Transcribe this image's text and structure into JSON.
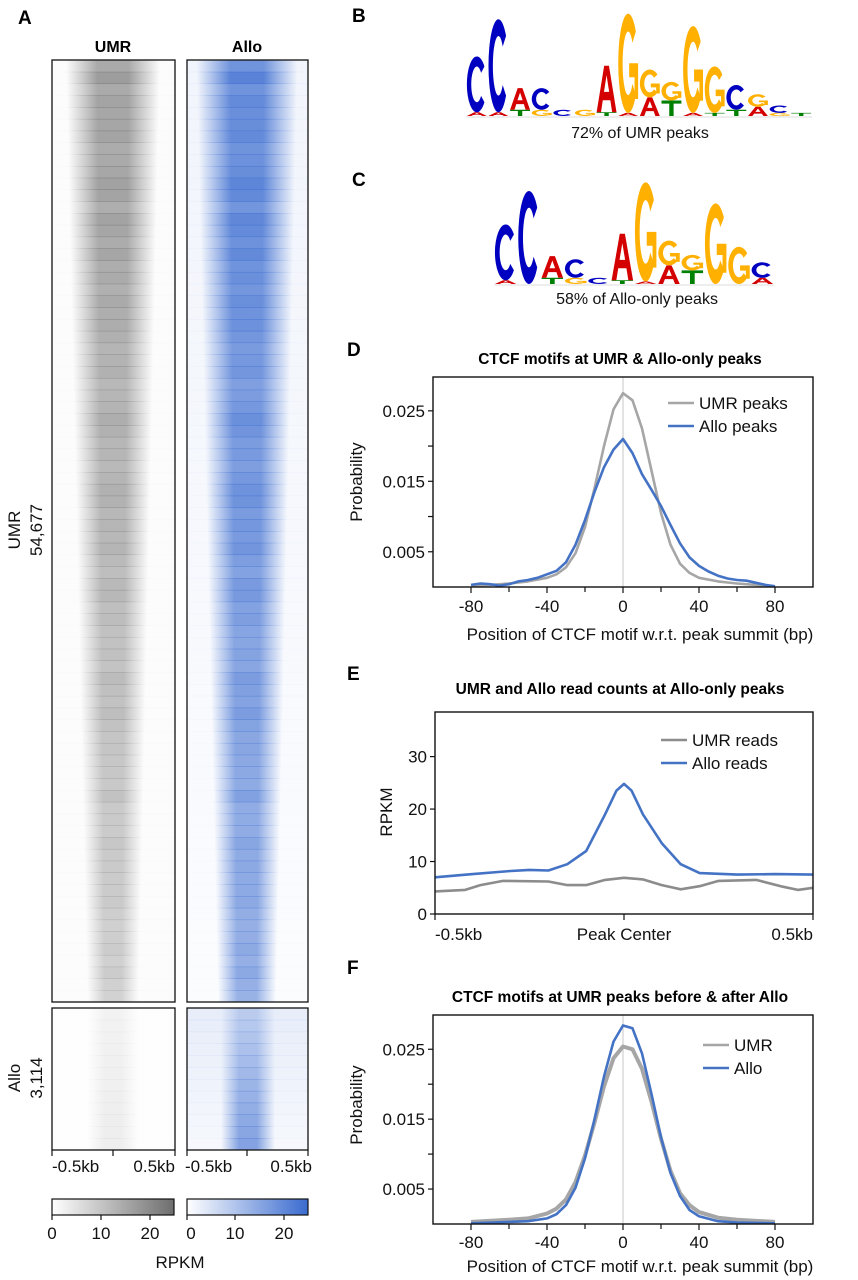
{
  "panel_labels": {
    "A": "A",
    "B": "B",
    "C": "C",
    "D": "D",
    "E": "E",
    "F": "F"
  },
  "colors": {
    "umr": "#a6a6a6",
    "allo": "#4472c4",
    "umr_dark": "#808080",
    "heat_gray": "#5e5e5e",
    "heat_blue": "#3a6bcf",
    "A": "#d40000",
    "C": "#0000c0",
    "G": "#ffb000",
    "T": "#008000"
  },
  "panels": {
    "B": {
      "caption": "72% of UMR peaks",
      "columns": [
        [
          [
            "A",
            0.06
          ],
          [
            "C",
            0.9
          ]
        ],
        [
          [
            "A",
            0.06
          ],
          [
            "C",
            1.5
          ]
        ],
        [
          [
            "T",
            0.1
          ],
          [
            "A",
            0.35
          ]
        ],
        [
          [
            "G",
            0.1
          ],
          [
            "C",
            0.35
          ]
        ],
        [
          [
            "C",
            0.1
          ]
        ],
        [
          [
            "G",
            0.1
          ]
        ],
        [
          [
            "T",
            0.06
          ],
          [
            "A",
            0.75
          ]
        ],
        [
          [
            "A",
            0.05
          ],
          [
            "G",
            1.6
          ]
        ],
        [
          [
            "A",
            0.3
          ],
          [
            "G",
            0.45
          ]
        ],
        [
          [
            "T",
            0.25
          ],
          [
            "G",
            0.3
          ]
        ],
        [
          [
            "A",
            0.05
          ],
          [
            "G",
            1.4
          ]
        ],
        [
          [
            "T",
            0.05
          ],
          [
            "G",
            0.75
          ]
        ],
        [
          [
            "T",
            0.1
          ],
          [
            "C",
            0.4
          ]
        ],
        [
          [
            "A",
            0.15
          ],
          [
            "G",
            0.2
          ]
        ],
        [
          [
            "G",
            0.05
          ],
          [
            "C",
            0.12
          ]
        ],
        [
          [
            "T",
            0.05
          ]
        ]
      ]
    },
    "C": {
      "caption": "58% of Allo-only peaks",
      "columns": [
        [
          [
            "A",
            0.06
          ],
          [
            "C",
            0.9
          ]
        ],
        [
          [
            "C",
            1.5
          ]
        ],
        [
          [
            "T",
            0.1
          ],
          [
            "A",
            0.35
          ]
        ],
        [
          [
            "G",
            0.1
          ],
          [
            "C",
            0.3
          ]
        ],
        [
          [
            "C",
            0.1
          ]
        ],
        [
          [
            "T",
            0.06
          ],
          [
            "A",
            0.75
          ]
        ],
        [
          [
            "A",
            0.04
          ],
          [
            "G",
            1.6
          ]
        ],
        [
          [
            "A",
            0.3
          ],
          [
            "G",
            0.4
          ]
        ],
        [
          [
            "T",
            0.22
          ],
          [
            "G",
            0.25
          ]
        ],
        [
          [
            "G",
            1.3
          ]
        ],
        [
          [
            "G",
            0.6
          ]
        ],
        [
          [
            "A",
            0.1
          ],
          [
            "C",
            0.25
          ]
        ]
      ]
    }
  },
  "chart_data": [
    {
      "id": "A",
      "type": "heatmap",
      "columns": [
        "UMR",
        "Allo"
      ],
      "row_groups": [
        {
          "name": "UMR",
          "count": "54,677"
        },
        {
          "name": "Allo",
          "count": "3,114"
        }
      ],
      "x_tick_labels": [
        "-0.5kb",
        "0.5kb"
      ],
      "colorbar": {
        "label": "RPKM",
        "ticks": [
          "0",
          "10",
          "20"
        ],
        "range": [
          0,
          25
        ]
      }
    },
    {
      "id": "D",
      "type": "line",
      "title": "CTCF motifs at UMR & Allo-only peaks",
      "xlabel": "Position of CTCF motif w.r.t. peak summit (bp)",
      "ylabel": "Probability",
      "xlim": [
        -100,
        100
      ],
      "ylim": [
        0,
        0.0298
      ],
      "xticks": [
        "-80",
        "-40",
        "0",
        "40",
        "80"
      ],
      "yticks": [
        "0.005",
        "0.015",
        "0.025"
      ],
      "legend": "top-right",
      "series": [
        {
          "name": "UMR peaks",
          "color": "#a6a6a6",
          "x": [
            -80,
            -70,
            -60,
            -50,
            -40,
            -35,
            -30,
            -25,
            -20,
            -15,
            -10,
            -5,
            0,
            5,
            10,
            15,
            20,
            25,
            30,
            35,
            40,
            50,
            60,
            70,
            80
          ],
          "y": [
            0.0002,
            0.0003,
            0.0005,
            0.0008,
            0.0013,
            0.0018,
            0.0028,
            0.0048,
            0.0085,
            0.014,
            0.02,
            0.0252,
            0.0275,
            0.0265,
            0.0225,
            0.0165,
            0.0105,
            0.006,
            0.0033,
            0.002,
            0.0013,
            0.0008,
            0.0005,
            0.0003,
            0.0001
          ]
        },
        {
          "name": "Allo peaks",
          "color": "#4472c4",
          "x": [
            -80,
            -75,
            -70,
            -65,
            -60,
            -55,
            -50,
            -45,
            -40,
            -35,
            -30,
            -25,
            -20,
            -15,
            -10,
            -5,
            0,
            5,
            10,
            15,
            20,
            25,
            30,
            35,
            40,
            45,
            50,
            55,
            60,
            65,
            70,
            75,
            80
          ],
          "y": [
            0.0003,
            0.0005,
            0.0004,
            0.0002,
            0.0004,
            0.0008,
            0.001,
            0.0013,
            0.0018,
            0.0023,
            0.0035,
            0.006,
            0.0095,
            0.0135,
            0.017,
            0.0195,
            0.021,
            0.019,
            0.016,
            0.0138,
            0.0115,
            0.0088,
            0.0062,
            0.0042,
            0.003,
            0.0022,
            0.0016,
            0.0012,
            0.001,
            0.0009,
            0.0006,
            0.0003,
            0.0001
          ]
        }
      ]
    },
    {
      "id": "E",
      "type": "line",
      "title": "UMR and Allo read counts at Allo-only peaks",
      "xlabel": "",
      "ylabel": "RPKM",
      "xlim": [
        -500,
        500
      ],
      "ylim": [
        0,
        38.5
      ],
      "xticks": [
        "-0.5kb",
        "Peak Center",
        "0.5kb"
      ],
      "yticks": [
        "0",
        "10",
        "20",
        "30"
      ],
      "legend": "top-right",
      "series": [
        {
          "name": "UMR reads",
          "color": "#8c8c8c",
          "x": [
            -500,
            -420,
            -380,
            -320,
            -200,
            -150,
            -100,
            -50,
            0,
            50,
            100,
            150,
            200,
            250,
            350,
            420,
            460,
            500
          ],
          "y": [
            4.3,
            4.6,
            5.5,
            6.3,
            6.2,
            5.5,
            5.5,
            6.5,
            6.9,
            6.6,
            5.5,
            4.7,
            5.3,
            6.3,
            6.5,
            5.2,
            4.6,
            5.0
          ]
        },
        {
          "name": "Allo reads",
          "color": "#4472c4",
          "x": [
            -500,
            -400,
            -300,
            -250,
            -200,
            -150,
            -100,
            -50,
            -20,
            0,
            20,
            50,
            100,
            150,
            200,
            300,
            400,
            500
          ],
          "y": [
            7.0,
            7.6,
            8.2,
            8.4,
            8.3,
            9.5,
            12,
            19,
            23.5,
            24.8,
            23.5,
            19,
            13.5,
            9.5,
            7.8,
            7.5,
            7.6,
            7.5
          ]
        }
      ]
    },
    {
      "id": "F",
      "type": "line",
      "title": "CTCF motifs at UMR peaks before & after Allo",
      "xlabel": "Position of CTCF motif w.r.t. peak summit (bp)",
      "ylabel": "Probability",
      "xlim": [
        -100,
        100
      ],
      "ylim": [
        0,
        0.0299
      ],
      "xticks": [
        "-80",
        "-40",
        "0",
        "40",
        "80"
      ],
      "yticks": [
        "0.005",
        "0.015",
        "0.025"
      ],
      "legend": "top-right",
      "series": [
        {
          "name": "UMR",
          "color": "#a6a6a6",
          "x": [
            -80,
            -60,
            -50,
            -40,
            -35,
            -30,
            -25,
            -20,
            -15,
            -10,
            -5,
            0,
            5,
            10,
            15,
            20,
            25,
            30,
            35,
            40,
            50,
            60,
            80
          ],
          "y": [
            0.0003,
            0.0006,
            0.0008,
            0.0015,
            0.0022,
            0.0035,
            0.006,
            0.0098,
            0.0145,
            0.0197,
            0.0237,
            0.0254,
            0.025,
            0.0222,
            0.0175,
            0.0122,
            0.0076,
            0.0044,
            0.0027,
            0.0017,
            0.0009,
            0.0006,
            0.0003
          ]
        },
        {
          "name": "Allo",
          "color": "#4472c4",
          "x": [
            -80,
            -60,
            -50,
            -40,
            -35,
            -30,
            -25,
            -20,
            -15,
            -10,
            -5,
            0,
            5,
            10,
            15,
            20,
            25,
            30,
            35,
            40,
            50,
            60,
            80
          ],
          "y": [
            0.0001,
            0.0003,
            0.0004,
            0.0008,
            0.0014,
            0.0027,
            0.0052,
            0.0094,
            0.015,
            0.0211,
            0.0261,
            0.0284,
            0.028,
            0.0244,
            0.0186,
            0.0124,
            0.0073,
            0.004,
            0.002,
            0.0011,
            0.0004,
            0.0002,
            0.0001
          ]
        }
      ]
    }
  ]
}
